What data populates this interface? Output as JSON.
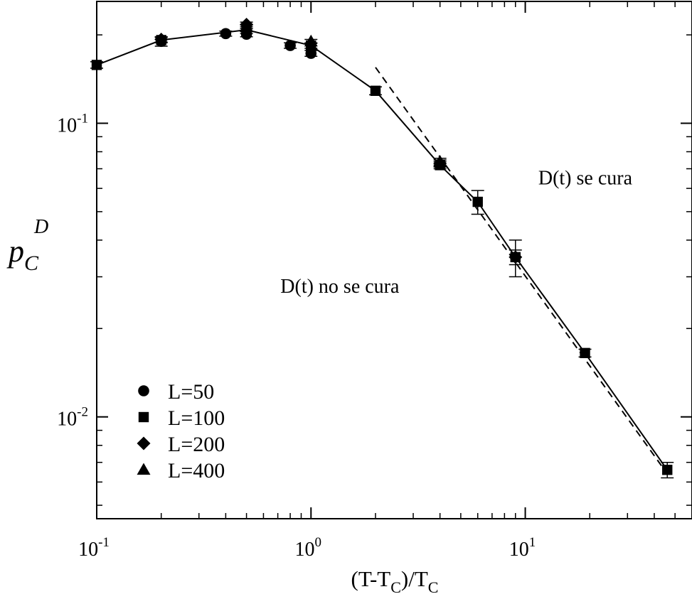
{
  "chart_data": {
    "type": "scatter",
    "x_scale": "log",
    "y_scale": "log",
    "xlim": [
      0.1,
      60
    ],
    "ylim": [
      0.0045,
      0.26
    ],
    "grid": false,
    "legend_position": "bottom-left",
    "xlabel": {
      "base": "(T-T",
      "sub1": "C",
      "mid": ")/T",
      "sub2": "C"
    },
    "ylabel": {
      "main": "p",
      "sub": "C",
      "sup": "D"
    },
    "x_ticks": [
      {
        "value": 0.1,
        "base": "10",
        "exp": "-1"
      },
      {
        "value": 1,
        "base": "10",
        "exp": "0"
      },
      {
        "value": 10,
        "base": "10",
        "exp": "1"
      }
    ],
    "y_ticks": [
      {
        "value": 0.01,
        "base": "10",
        "exp": "-2"
      },
      {
        "value": 0.1,
        "base": "10",
        "exp": "-1"
      }
    ],
    "series": [
      {
        "name": "L=50",
        "marker": "circle",
        "points": [
          {
            "x": 0.2,
            "y": 0.19,
            "err": 0.007
          },
          {
            "x": 0.4,
            "y": 0.202,
            "err": 0.004
          },
          {
            "x": 0.5,
            "y": 0.201,
            "err": 0.004
          },
          {
            "x": 0.8,
            "y": 0.184,
            "err": 0.004
          },
          {
            "x": 1.0,
            "y": 0.173,
            "err": 0.004
          }
        ]
      },
      {
        "name": "L=100",
        "marker": "square",
        "points": [
          {
            "x": 0.1,
            "y": 0.158,
            "err": 0.004
          },
          {
            "x": 0.2,
            "y": 0.192,
            "err": 0.004
          },
          {
            "x": 0.5,
            "y": 0.206,
            "err": 0.004
          },
          {
            "x": 1.0,
            "y": 0.184,
            "err": 0.004
          },
          {
            "x": 2.0,
            "y": 0.129,
            "err": 0.004
          },
          {
            "x": 4.0,
            "y": 0.072,
            "err": 0.002
          },
          {
            "x": 6.0,
            "y": 0.054,
            "err": 0.005
          },
          {
            "x": 9.0,
            "y": 0.035,
            "err": 0.005
          },
          {
            "x": 19.0,
            "y": 0.0165,
            "err": 0.0005
          },
          {
            "x": 46.0,
            "y": 0.0066,
            "err": 0.0004
          }
        ]
      },
      {
        "name": "L=200",
        "marker": "diamond",
        "points": [
          {
            "x": 0.2,
            "y": 0.193,
            "err": 0.004
          },
          {
            "x": 0.5,
            "y": 0.217,
            "err": 0.004
          },
          {
            "x": 4.0,
            "y": 0.073,
            "err": 0.002
          },
          {
            "x": 9.0,
            "y": 0.035,
            "err": 0.002
          }
        ]
      },
      {
        "name": "L=400",
        "marker": "triangle",
        "points": [
          {
            "x": 0.5,
            "y": 0.213,
            "err": 0.003
          },
          {
            "x": 1.0,
            "y": 0.19,
            "err": 0.003
          },
          {
            "x": 4.0,
            "y": 0.074,
            "err": 0.002
          }
        ]
      }
    ],
    "solid_line": {
      "x": [
        0.1,
        0.2,
        0.5,
        1.0,
        2.0,
        4.0,
        6.0,
        9.0,
        19.0,
        46.0
      ],
      "y": [
        0.158,
        0.192,
        0.208,
        0.184,
        0.129,
        0.072,
        0.054,
        0.035,
        0.0165,
        0.0066
      ]
    },
    "dashed_line": {
      "x": [
        2.0,
        46.0
      ],
      "y": [
        0.155,
        0.0064
      ]
    },
    "annotations": [
      {
        "text": "D(t) se cura",
        "x": 11.5,
        "y": 0.062
      },
      {
        "text": "D(t) no se cura",
        "x": 0.72,
        "y": 0.0265
      }
    ]
  }
}
